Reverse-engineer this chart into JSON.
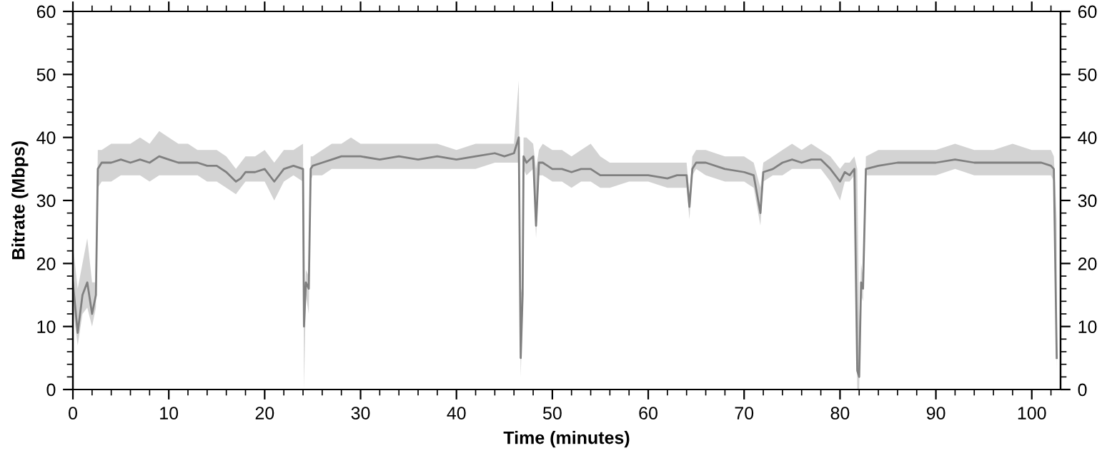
{
  "chart_data": {
    "type": "line",
    "xlabel": "Time (minutes)",
    "ylabel": "Bitrate (Mbps)",
    "xlim": [
      0,
      103
    ],
    "xticks": [
      0,
      10,
      20,
      30,
      40,
      50,
      60,
      70,
      80,
      90,
      100
    ],
    "ylim": [
      0,
      60
    ],
    "yticks": [
      0,
      10,
      20,
      30,
      40,
      50,
      60
    ],
    "y2lim": [
      0,
      60
    ],
    "y2ticks": [
      0,
      10,
      20,
      30,
      40,
      50,
      60
    ],
    "grid": false,
    "marker": "none",
    "line_style": "solid",
    "series": [
      {
        "color": "#808080",
        "x": [
          0,
          0.5,
          1,
          1.5,
          2,
          2.4,
          2.6,
          3,
          4,
          5,
          6,
          7,
          8,
          9,
          10,
          11,
          12,
          13,
          14,
          15,
          16,
          17,
          17.5,
          18,
          19,
          20,
          21,
          22,
          23,
          24,
          24.1,
          24.3,
          24.6,
          24.8,
          25,
          26,
          27,
          28,
          29,
          30,
          32,
          34,
          36,
          38,
          40,
          42,
          44,
          45,
          46,
          46.5,
          46.7,
          46.9,
          47,
          47.3,
          48,
          48.3,
          48.6,
          49,
          50,
          51,
          52,
          53,
          54,
          55,
          56,
          58,
          60,
          62,
          63,
          64,
          64.3,
          64.6,
          65,
          66,
          68,
          70,
          71,
          71.7,
          72,
          73,
          74,
          75,
          76,
          77,
          78,
          79,
          80,
          80.5,
          81,
          81.5,
          81.8,
          82.0,
          82.2,
          82.4,
          82.7,
          84,
          86,
          88,
          90,
          92,
          94,
          96,
          98,
          100,
          101,
          102,
          102.3,
          102.6
        ],
        "values": [
          17,
          9,
          15,
          17,
          12,
          15,
          35,
          36,
          36,
          36.5,
          36,
          36.5,
          36,
          37,
          36.5,
          36,
          36,
          36,
          35.5,
          35.5,
          34.5,
          33,
          33.5,
          34.5,
          34.5,
          35,
          33,
          35,
          35.5,
          35,
          10,
          17,
          16,
          35,
          35.5,
          36,
          36.5,
          37,
          37,
          37,
          36.5,
          37,
          36.5,
          37,
          36.5,
          37,
          37.5,
          37,
          37.5,
          40,
          5,
          15,
          37,
          36,
          37,
          26,
          36,
          36,
          35,
          35,
          34.5,
          35,
          35,
          34,
          34,
          34,
          34,
          33.5,
          34,
          34,
          29,
          35,
          36,
          36,
          35,
          34.5,
          34,
          28,
          34.5,
          35,
          36,
          36.5,
          36,
          36.5,
          36.5,
          35,
          33,
          34.5,
          34,
          35,
          3,
          2,
          17,
          16,
          35,
          35.5,
          36,
          36,
          36,
          36.5,
          36,
          36,
          36,
          36,
          36,
          35.5,
          35,
          5
        ],
        "lower": [
          13,
          7,
          12,
          13,
          10,
          13,
          32,
          33,
          33,
          34,
          34,
          34,
          33,
          34,
          34,
          34,
          34,
          34,
          33,
          33,
          32,
          31,
          32,
          33,
          33,
          33,
          30,
          33,
          34,
          33,
          0,
          15,
          12,
          33,
          34,
          34,
          35,
          35,
          35,
          35,
          35,
          35,
          35,
          35,
          35,
          35,
          36,
          36,
          36,
          36,
          2,
          12,
          35,
          34,
          35,
          24,
          34,
          34,
          33,
          33,
          32,
          33,
          33,
          32,
          32,
          33,
          33,
          32,
          32,
          32,
          27,
          34,
          35,
          34,
          33,
          33,
          32,
          26,
          33,
          34,
          34,
          35,
          35,
          35,
          35,
          33,
          30,
          33,
          33,
          34,
          0,
          0,
          15,
          14,
          34,
          34,
          34,
          34,
          34,
          35,
          34,
          34,
          34,
          34,
          34,
          34,
          33,
          3
        ],
        "upper": [
          23,
          16,
          20,
          24,
          17,
          17,
          38,
          38,
          39,
          39,
          39,
          40,
          39,
          41,
          40,
          39,
          39,
          38,
          38,
          38,
          37,
          35,
          36,
          37,
          37,
          38,
          36,
          38,
          38,
          39,
          12,
          19,
          18,
          37,
          37,
          38,
          39,
          39,
          40,
          39,
          39,
          39,
          39,
          39,
          38,
          39,
          39,
          39,
          39,
          49,
          15,
          17,
          40,
          40,
          39,
          35,
          38,
          39,
          38,
          38,
          37,
          38,
          39,
          37,
          36,
          36,
          36,
          36,
          36,
          36,
          31,
          37,
          38,
          38,
          37,
          37,
          36,
          32,
          36,
          37,
          38,
          39,
          38,
          39,
          38,
          37,
          35,
          36,
          36,
          37,
          35,
          10,
          20,
          18,
          37,
          38,
          38,
          38,
          38,
          39,
          38,
          38,
          39,
          38,
          38,
          38,
          37,
          27
        ]
      }
    ]
  }
}
